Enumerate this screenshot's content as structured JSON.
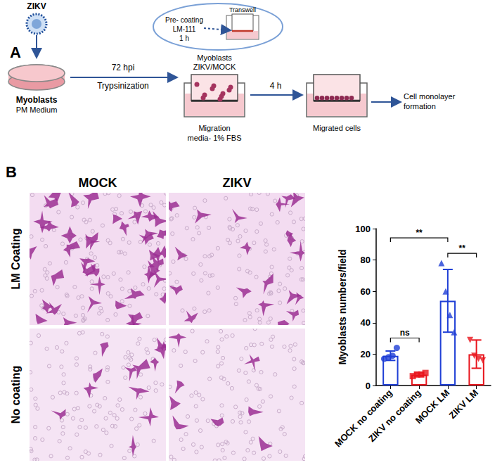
{
  "panel_a": {
    "label": "A",
    "virus": "ZIKV",
    "cells": "Myoblasts",
    "medium": "PM Medium",
    "step1": [
      "72 hpi",
      "Trypsinization"
    ],
    "inset": {
      "title": "Transwell",
      "text": [
        "Pre- coating",
        "LM-111",
        "1 h"
      ]
    },
    "seeded": [
      "Myoblasts",
      "ZIKV/MOCK"
    ],
    "lower_chamber": [
      "Migration",
      "media- 1% FBS"
    ],
    "step2": "4 h",
    "result": "Migrated cells",
    "outcome": [
      "Cell monolayer",
      "formation"
    ]
  },
  "panel_b": {
    "label": "B",
    "columns": [
      "MOCK",
      "ZIKV"
    ],
    "rows": [
      "LM Coating",
      "No coating"
    ]
  },
  "chart_data": {
    "type": "bar",
    "categories": [
      "MOCK no coating",
      "ZIKV no coating",
      "MOCK LM",
      "ZIKV LM"
    ],
    "values": [
      19,
      7,
      54,
      20
    ],
    "errors": [
      3,
      1,
      20,
      9
    ],
    "colors": [
      "#1f3fd6",
      "#e8141c",
      "#1f3fd6",
      "#e8141c"
    ],
    "points": [
      {
        "marker": "circle",
        "values": [
          17,
          18,
          19,
          24
        ]
      },
      {
        "marker": "square",
        "values": [
          6,
          7,
          7,
          8
        ]
      },
      {
        "marker": "triangle",
        "values": [
          78,
          60,
          45,
          34
        ]
      },
      {
        "marker": "triangle-down",
        "values": [
          29,
          19,
          17,
          16
        ]
      }
    ],
    "y_label": "Myoblasts numbers/field",
    "ylim": [
      0,
      100
    ],
    "yticks": [
      0,
      20,
      40,
      60,
      80,
      100
    ],
    "grid": false,
    "annotations": [
      {
        "from": "MOCK no coating",
        "to": "ZIKV no coating",
        "label": "ns"
      },
      {
        "from": "MOCK LM",
        "to": "ZIKV LM",
        "label": "**"
      },
      {
        "from": "MOCK no coating",
        "to": "MOCK LM",
        "label": "**"
      }
    ]
  }
}
